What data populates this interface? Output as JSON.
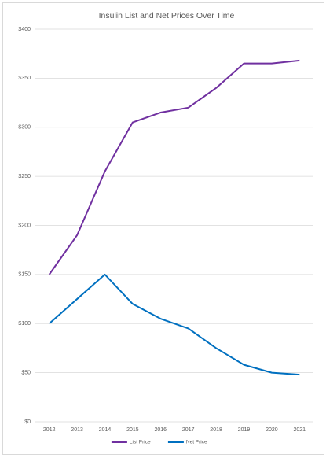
{
  "chart_data": {
    "type": "line",
    "title": "Insulin List and Net Prices Over Time",
    "categories": [
      "2012",
      "2013",
      "2014",
      "2015",
      "2016",
      "2017",
      "2018",
      "2019",
      "2020",
      "2021"
    ],
    "series": [
      {
        "name": "List Price",
        "color": "#7030a0",
        "values": [
          150,
          190,
          255,
          305,
          315,
          320,
          340,
          365,
          365,
          368
        ]
      },
      {
        "name": "Net Price",
        "color": "#0070c0",
        "values": [
          100,
          125,
          150,
          120,
          105,
          95,
          75,
          58,
          50,
          48
        ]
      }
    ],
    "ylim": [
      0,
      400
    ],
    "yticks": [
      {
        "value": 0,
        "label": "$0"
      },
      {
        "value": 50,
        "label": "$50"
      },
      {
        "value": 100,
        "label": "$100"
      },
      {
        "value": 150,
        "label": "$150"
      },
      {
        "value": 200,
        "label": "$200"
      },
      {
        "value": 250,
        "label": "$250"
      },
      {
        "value": 300,
        "label": "$300"
      },
      {
        "value": 350,
        "label": "$350"
      },
      {
        "value": 400,
        "label": "$400"
      }
    ],
    "grid": true,
    "legend": "bottom"
  }
}
